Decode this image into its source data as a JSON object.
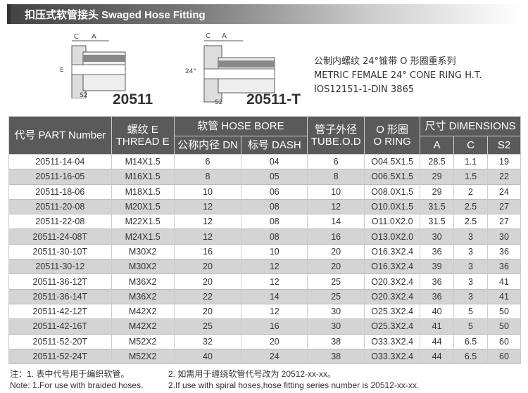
{
  "title": "扣压式软管接头  Swaged Hose Fitting",
  "drawings": [
    {
      "code": "20511",
      "labels": [
        "C",
        "A",
        "E",
        "S2"
      ]
    },
    {
      "code": "20511-T",
      "labels": [
        "C",
        "A",
        "24°",
        "S2"
      ]
    }
  ],
  "description": [
    "公制内螺纹 24°锥带 O 形圈重系列",
    "METRIC FEMALE 24° CONE RING H.T.",
    "IOS12151-1-DIN 3865"
  ],
  "table": {
    "headers": {
      "part": "代号 PART Number",
      "thread": [
        "螺纹 E",
        "THREAD E"
      ],
      "hose_bore": "软管 HOSE BORE",
      "dn": "公称内径 DN",
      "dash": "标号 DASH",
      "tube": [
        "管子外径",
        "TUBE.O.D"
      ],
      "oring": [
        "O 形圈",
        "O RING"
      ],
      "dims": "尺寸 DIMENSIONS",
      "a": "A",
      "c": "C",
      "s2": "S2"
    },
    "rows": [
      [
        "20511-14-04",
        "M14X1.5",
        "6",
        "04",
        "6",
        "O04.5X1.5",
        "28.5",
        "1.1",
        "19"
      ],
      [
        "20511-16-05",
        "M16X1.5",
        "8",
        "05",
        "8",
        "O06.5X1.5",
        "29",
        "1.5",
        "22"
      ],
      [
        "20511-18-06",
        "M18X1.5",
        "10",
        "06",
        "10",
        "O08.0X1.5",
        "29",
        "2",
        "24"
      ],
      [
        "20511-20-08",
        "M20X1.5",
        "12",
        "08",
        "12",
        "O10.0X1.5",
        "31.5",
        "2.5",
        "27"
      ],
      [
        "20511-22-08",
        "M22X1.5",
        "12",
        "08",
        "14",
        "O11.0X2.0",
        "31.5",
        "2.5",
        "27"
      ],
      [
        "20511-24-08T",
        "M24X1.5",
        "12",
        "08",
        "16",
        "O13.0X2.0",
        "30",
        "3",
        "30"
      ],
      [
        "20511-30-10T",
        "M30X2",
        "16",
        "10",
        "20",
        "O16.3X2.4",
        "36",
        "3",
        "36"
      ],
      [
        "20511-30-12",
        "M30X2",
        "20",
        "12",
        "20",
        "O16.3X2.4",
        "39",
        "3",
        "36"
      ],
      [
        "20511-36-12T",
        "M36X2",
        "20",
        "12",
        "25",
        "O20.3X2.4",
        "36",
        "3",
        "41"
      ],
      [
        "20511-36-14T",
        "M36X2",
        "22",
        "14",
        "25",
        "O20.3X2.4",
        "36",
        "3",
        "41"
      ],
      [
        "20511-42-12T",
        "M42X2",
        "20",
        "12",
        "30",
        "O25.3X2.4",
        "40",
        "5",
        "50"
      ],
      [
        "20511-42-16T",
        "M42X2",
        "25",
        "16",
        "30",
        "O25.3X2.4",
        "41",
        "5",
        "50"
      ],
      [
        "20511-52-20T",
        "M52X2",
        "32",
        "20",
        "38",
        "O33.3X2.4",
        "44",
        "6.5",
        "60"
      ],
      [
        "20511-52-24T",
        "M52X2",
        "40",
        "24",
        "38",
        "O33.3X2.4",
        "44",
        "6.5",
        "60"
      ]
    ]
  },
  "notes": {
    "cn1": "注：1. 表中代号用于编织软管。",
    "cn2": "2. 如需用于缠绕软管代号改为 20512-xx-xx。",
    "en1": "Note: 1.For use with braided hoses.",
    "en2": "2.If use with spiral hoses,hose fitting series number is 20512-xx-xx."
  }
}
